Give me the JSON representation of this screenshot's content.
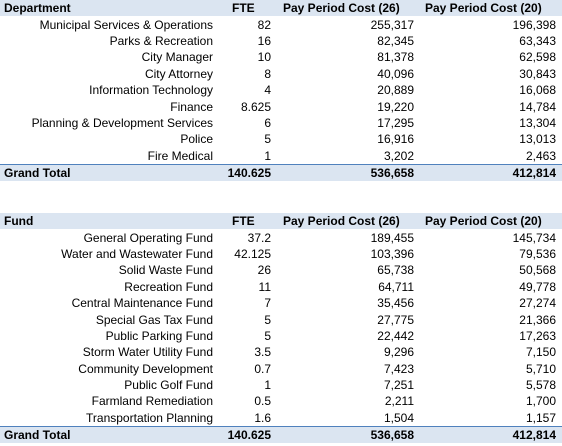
{
  "tables": [
    {
      "header": [
        "Department",
        "FTE",
        "Pay Period Cost (26)",
        "Pay Period Cost (20)"
      ],
      "rows": [
        [
          "Municipal Services & Operations",
          "82",
          "255,317",
          "196,398"
        ],
        [
          "Parks & Recreation",
          "16",
          "82,345",
          "63,343"
        ],
        [
          "City Manager",
          "10",
          "81,378",
          "62,598"
        ],
        [
          "City Attorney",
          "8",
          "40,096",
          "30,843"
        ],
        [
          "Information Technology",
          "4",
          "20,889",
          "16,068"
        ],
        [
          "Finance",
          "8.625",
          "19,220",
          "14,784"
        ],
        [
          "Planning & Development Services",
          "6",
          "17,295",
          "13,304"
        ],
        [
          "Police",
          "5",
          "16,916",
          "13,013"
        ],
        [
          "Fire Medical",
          "1",
          "3,202",
          "2,463"
        ]
      ],
      "total": [
        "Grand Total",
        "140.625",
        "536,658",
        "412,814"
      ]
    },
    {
      "header": [
        "Fund",
        "FTE",
        "Pay Period Cost (26)",
        "Pay Period Cost (20)"
      ],
      "rows": [
        [
          "General Operating Fund",
          "37.2",
          "189,455",
          "145,734"
        ],
        [
          "Water and Wastewater Fund",
          "42.125",
          "103,396",
          "79,536"
        ],
        [
          "Solid Waste Fund",
          "26",
          "65,738",
          "50,568"
        ],
        [
          "Recreation Fund",
          "11",
          "64,711",
          "49,778"
        ],
        [
          "Central Maintenance Fund",
          "7",
          "35,456",
          "27,274"
        ],
        [
          "Special Gas Tax Fund",
          "5",
          "27,775",
          "21,366"
        ],
        [
          "Public Parking Fund",
          "5",
          "22,442",
          "17,263"
        ],
        [
          "Storm Water Utility Fund",
          "3.5",
          "9,296",
          "7,150"
        ],
        [
          "Community Development",
          "0.7",
          "7,423",
          "5,710"
        ],
        [
          "Public Golf Fund",
          "1",
          "7,251",
          "5,578"
        ],
        [
          "Farmland Remediation",
          "0.5",
          "2,211",
          "1,700"
        ],
        [
          "Transportation Planning",
          "1.6",
          "1,504",
          "1,157"
        ]
      ],
      "total": [
        "Grand Total",
        "140.625",
        "536,658",
        "412,814"
      ]
    }
  ]
}
